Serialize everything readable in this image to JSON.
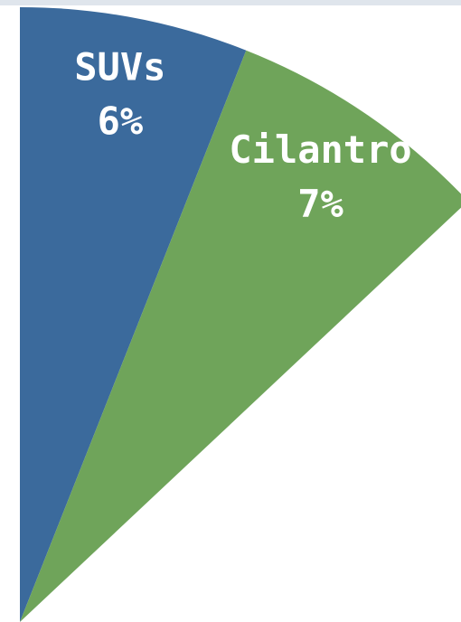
{
  "chart_data": {
    "type": "pie",
    "categories": [
      "SUVs",
      "Cilantro"
    ],
    "values": [
      6,
      7
    ],
    "value_labels": [
      "6%",
      "7%"
    ],
    "colors": [
      "#3b6a9c",
      "#6fa45a"
    ]
  }
}
